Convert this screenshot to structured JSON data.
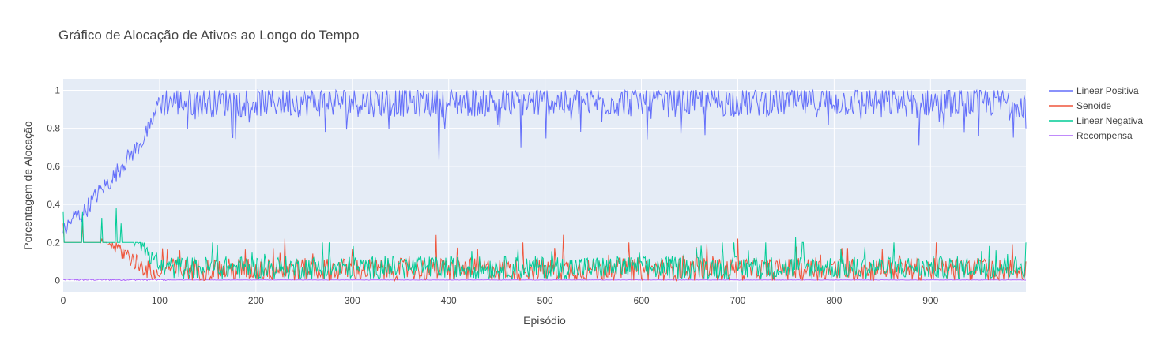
{
  "chart_data": {
    "type": "line",
    "title": "Gráfico de Alocação de Ativos ao Longo do Tempo",
    "xlabel": "Episódio",
    "ylabel": "Porcentagem de Alocação",
    "xlim": [
      0,
      999
    ],
    "ylim": [
      -0.06,
      1.06
    ],
    "x_ticks": [
      0,
      100,
      200,
      300,
      400,
      500,
      600,
      700,
      800,
      900
    ],
    "y_ticks": [
      0,
      0.2,
      0.4,
      0.6,
      0.8,
      1
    ],
    "grid": true,
    "legend_position": "top-right",
    "background": "#e5ecf6",
    "series": [
      {
        "name": "Linear Positiva",
        "color": "#636efa",
        "points": [
          [
            0,
            0.25
          ],
          [
            10,
            0.33
          ],
          [
            20,
            0.35
          ],
          [
            30,
            0.42
          ],
          [
            40,
            0.48
          ],
          [
            50,
            0.53
          ],
          [
            60,
            0.6
          ],
          [
            70,
            0.66
          ],
          [
            80,
            0.72
          ],
          [
            90,
            0.8
          ],
          [
            100,
            0.95
          ],
          [
            110,
            0.93
          ],
          [
            200,
            0.94
          ],
          [
            300,
            0.93
          ],
          [
            390,
            0.63
          ],
          [
            400,
            0.93
          ],
          [
            475,
            0.7
          ],
          [
            500,
            0.93
          ],
          [
            600,
            0.93
          ],
          [
            700,
            0.92
          ],
          [
            800,
            0.92
          ],
          [
            888,
            0.71
          ],
          [
            900,
            0.92
          ],
          [
            950,
            0.76
          ],
          [
            999,
            0.8
          ]
        ],
        "baseline": [
          0.94,
          0.06
        ]
      },
      {
        "name": "Senoide",
        "color": "#ef553b",
        "points": [
          [
            0,
            0.3
          ],
          [
            20,
            0.3
          ],
          [
            40,
            0.22
          ],
          [
            60,
            0.16
          ],
          [
            80,
            0.08
          ],
          [
            100,
            0.02
          ],
          [
            230,
            0.22
          ],
          [
            387,
            0.24
          ],
          [
            519,
            0.24
          ],
          [
            700,
            0.22
          ],
          [
            999,
            0.1
          ]
        ],
        "baseline": [
          0.04,
          0.05
        ]
      },
      {
        "name": "Linear Negativa",
        "color": "#00cc96",
        "points": [
          [
            0,
            0.36
          ],
          [
            20,
            0.36
          ],
          [
            40,
            0.33
          ],
          [
            55,
            0.38
          ],
          [
            60,
            0.3
          ],
          [
            80,
            0.2
          ],
          [
            100,
            0.08
          ],
          [
            760,
            0.23
          ],
          [
            999,
            0.2
          ]
        ],
        "baseline": [
          0.05,
          0.06
        ]
      },
      {
        "name": "Recompensa",
        "color": "#ab63fa",
        "points": [
          [
            0,
            0.005
          ],
          [
            100,
            0.004
          ],
          [
            999,
            0.002
          ]
        ],
        "baseline": [
          0.004,
          0.003
        ]
      }
    ]
  }
}
